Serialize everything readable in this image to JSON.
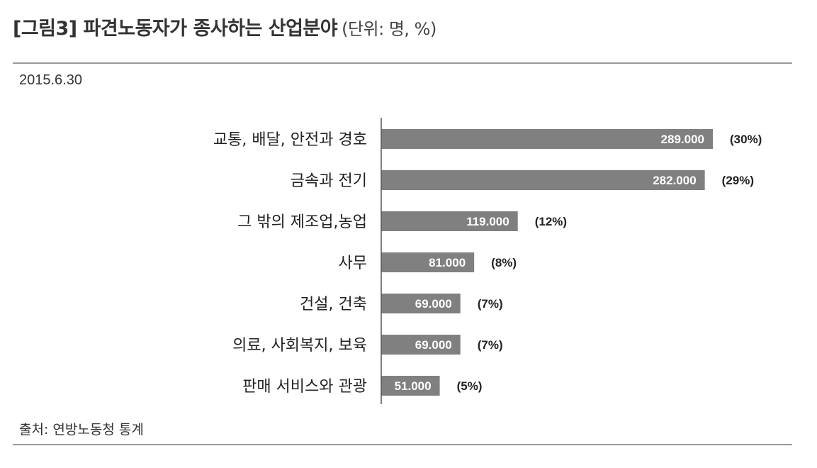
{
  "header": {
    "title": "[그림3] 파견노동자가 종사하는 산업분야",
    "unit": "(단위: 명, %)"
  },
  "date": "2015.6.30",
  "source": "출처: 연방노동청 통계",
  "colors": {
    "bar": "#808080",
    "axis": "#555555",
    "rule": "#9a9a9a"
  },
  "chart_data": {
    "type": "bar",
    "orientation": "horizontal",
    "categories": [
      "교통, 배달, 안전과 경호",
      "금속과 전기",
      "그 밖의 제조업,농업",
      "사무",
      "건설, 건축",
      "의료, 사회복지, 보육",
      "판매 서비스와 관광"
    ],
    "values": [
      289000,
      282000,
      119000,
      81000,
      69000,
      69000,
      51000
    ],
    "value_labels": [
      "289.000",
      "282.000",
      "119.000",
      "81.000",
      "69.000",
      "69.000",
      "51.000"
    ],
    "percent_labels": [
      "(30%)",
      "(29%)",
      "(12%)",
      "(8%)",
      "(7%)",
      "(7%)",
      "(5%)"
    ],
    "xlim": [
      0,
      289000
    ],
    "grid": false,
    "legend": "none"
  }
}
